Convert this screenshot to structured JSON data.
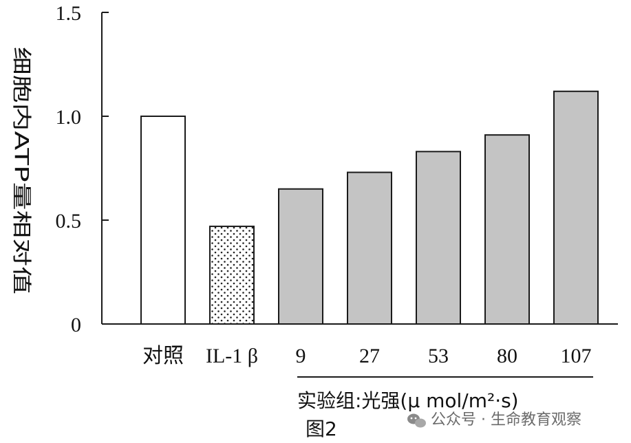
{
  "chart_data": {
    "type": "bar",
    "ylabel": "细胞内ATP量相对值",
    "ylim": [
      0,
      1.5
    ],
    "yticks": [
      "0",
      "0.5",
      "1.0",
      "1.5"
    ],
    "categories": [
      "对照",
      "IL-1 β",
      "9",
      "27",
      "53",
      "80",
      "107"
    ],
    "values": [
      1.0,
      0.47,
      0.65,
      0.73,
      0.83,
      0.91,
      1.12
    ],
    "fills": [
      "open",
      "dotted",
      "gray",
      "gray",
      "gray",
      "gray",
      "gray"
    ],
    "group_label": "实验组:光强(μ mol/m²·s)",
    "caption": "图2"
  },
  "colors": {
    "bar_gray": "#c4c4c4",
    "outline": "#1a1a1a"
  },
  "watermark": {
    "icon": "wechat-icon",
    "text": "公众号 · 生命教育观察"
  }
}
